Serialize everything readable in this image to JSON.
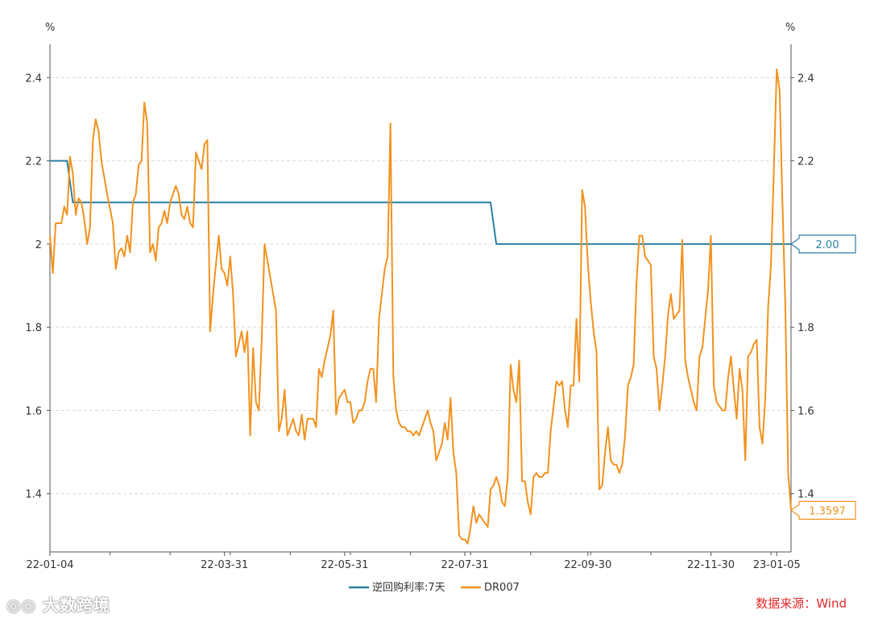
{
  "chart_data": {
    "type": "line",
    "y_unit_left": "%",
    "y_unit_right": "%",
    "ylim": [
      1.26,
      2.48
    ],
    "y_ticks": [
      1.4,
      1.6,
      1.8,
      2,
      2.2,
      2.4
    ],
    "y_tick_labels": [
      "1.4",
      "1.6",
      "1.8",
      "2",
      "2.2",
      "2.4"
    ],
    "x_tick_labels": [
      "22-01-04",
      "22-03-31",
      "22-05-31",
      "22-07-31",
      "22-09-30",
      "22-11-30",
      "23-01-05"
    ],
    "x_tick_positions": [
      0,
      61,
      103,
      145,
      188,
      231,
      254
    ],
    "x_max": 259,
    "grid": "horizontal dashed",
    "legend_position": "bottom-center",
    "series": [
      {
        "name": "逆回购利率:7天",
        "color": "#2a7fa5",
        "end_label": "2.00",
        "points": [
          [
            0,
            2.2
          ],
          [
            6,
            2.2
          ],
          [
            8,
            2.1
          ],
          [
            154,
            2.1
          ],
          [
            156,
            2.0
          ],
          [
            259,
            2.0
          ]
        ]
      },
      {
        "name": "DR007",
        "color": "#f2921f",
        "end_label": "1.3597",
        "points": [
          [
            0,
            2.02
          ],
          [
            1,
            1.93
          ],
          [
            2,
            2.05
          ],
          [
            4,
            2.05
          ],
          [
            5,
            2.09
          ],
          [
            6,
            2.07
          ],
          [
            7,
            2.21
          ],
          [
            8,
            2.17
          ],
          [
            9,
            2.07
          ],
          [
            10,
            2.11
          ],
          [
            11,
            2.1
          ],
          [
            12,
            2.06
          ],
          [
            13,
            2.0
          ],
          [
            14,
            2.04
          ],
          [
            15,
            2.25
          ],
          [
            16,
            2.3
          ],
          [
            17,
            2.27
          ],
          [
            18,
            2.2
          ],
          [
            20,
            2.12
          ],
          [
            22,
            2.05
          ],
          [
            23,
            1.94
          ],
          [
            24,
            1.98
          ],
          [
            25,
            1.99
          ],
          [
            26,
            1.97
          ],
          [
            27,
            2.02
          ],
          [
            28,
            1.98
          ],
          [
            29,
            2.1
          ],
          [
            30,
            2.12
          ],
          [
            31,
            2.19
          ],
          [
            32,
            2.2
          ],
          [
            33,
            2.34
          ],
          [
            34,
            2.29
          ],
          [
            35,
            1.98
          ],
          [
            36,
            2.0
          ],
          [
            37,
            1.96
          ],
          [
            38,
            2.04
          ],
          [
            39,
            2.05
          ],
          [
            40,
            2.08
          ],
          [
            41,
            2.05
          ],
          [
            42,
            2.1
          ],
          [
            43,
            2.12
          ],
          [
            44,
            2.14
          ],
          [
            45,
            2.12
          ],
          [
            46,
            2.07
          ],
          [
            47,
            2.06
          ],
          [
            48,
            2.09
          ],
          [
            49,
            2.05
          ],
          [
            50,
            2.04
          ],
          [
            51,
            2.22
          ],
          [
            52,
            2.2
          ],
          [
            53,
            2.18
          ],
          [
            54,
            2.24
          ],
          [
            55,
            2.25
          ],
          [
            56,
            1.79
          ],
          [
            57,
            1.88
          ],
          [
            58,
            1.95
          ],
          [
            59,
            2.02
          ],
          [
            60,
            1.94
          ],
          [
            61,
            1.93
          ],
          [
            62,
            1.9
          ],
          [
            63,
            1.97
          ],
          [
            64,
            1.88
          ],
          [
            65,
            1.73
          ],
          [
            66,
            1.76
          ],
          [
            67,
            1.79
          ],
          [
            68,
            1.74
          ],
          [
            69,
            1.79
          ],
          [
            70,
            1.54
          ],
          [
            71,
            1.75
          ],
          [
            72,
            1.62
          ],
          [
            73,
            1.6
          ],
          [
            74,
            1.77
          ],
          [
            75,
            2.0
          ],
          [
            76,
            1.96
          ],
          [
            77,
            1.92
          ],
          [
            78,
            1.88
          ],
          [
            79,
            1.84
          ],
          [
            80,
            1.55
          ],
          [
            81,
            1.58
          ],
          [
            82,
            1.65
          ],
          [
            83,
            1.54
          ],
          [
            84,
            1.56
          ],
          [
            85,
            1.58
          ],
          [
            86,
            1.55
          ],
          [
            87,
            1.54
          ],
          [
            88,
            1.59
          ],
          [
            89,
            1.53
          ],
          [
            90,
            1.58
          ],
          [
            91,
            1.58
          ],
          [
            92,
            1.58
          ],
          [
            93,
            1.56
          ],
          [
            94,
            1.7
          ],
          [
            95,
            1.68
          ],
          [
            96,
            1.72
          ],
          [
            97,
            1.75
          ],
          [
            98,
            1.78
          ],
          [
            99,
            1.84
          ],
          [
            100,
            1.59
          ],
          [
            101,
            1.63
          ],
          [
            102,
            1.64
          ],
          [
            103,
            1.65
          ],
          [
            104,
            1.62
          ],
          [
            105,
            1.62
          ],
          [
            106,
            1.57
          ],
          [
            107,
            1.58
          ],
          [
            108,
            1.6
          ],
          [
            109,
            1.6
          ],
          [
            110,
            1.62
          ],
          [
            111,
            1.67
          ],
          [
            112,
            1.7
          ],
          [
            113,
            1.7
          ],
          [
            114,
            1.62
          ],
          [
            115,
            1.82
          ],
          [
            116,
            1.88
          ],
          [
            117,
            1.94
          ],
          [
            118,
            1.97
          ],
          [
            119,
            2.29
          ],
          [
            120,
            1.68
          ],
          [
            121,
            1.6
          ],
          [
            122,
            1.57
          ],
          [
            123,
            1.56
          ],
          [
            124,
            1.56
          ],
          [
            125,
            1.55
          ],
          [
            126,
            1.55
          ],
          [
            127,
            1.54
          ],
          [
            128,
            1.55
          ],
          [
            129,
            1.54
          ],
          [
            130,
            1.56
          ],
          [
            131,
            1.58
          ],
          [
            132,
            1.6
          ],
          [
            133,
            1.57
          ],
          [
            134,
            1.55
          ],
          [
            135,
            1.48
          ],
          [
            136,
            1.5
          ],
          [
            137,
            1.52
          ],
          [
            138,
            1.57
          ],
          [
            139,
            1.53
          ],
          [
            140,
            1.63
          ],
          [
            141,
            1.5
          ],
          [
            142,
            1.45
          ],
          [
            143,
            1.3
          ],
          [
            144,
            1.29
          ],
          [
            145,
            1.29
          ],
          [
            146,
            1.28
          ],
          [
            147,
            1.32
          ],
          [
            148,
            1.37
          ],
          [
            149,
            1.33
          ],
          [
            150,
            1.35
          ],
          [
            151,
            1.34
          ],
          [
            152,
            1.33
          ],
          [
            153,
            1.32
          ],
          [
            154,
            1.41
          ],
          [
            155,
            1.42
          ],
          [
            156,
            1.44
          ],
          [
            157,
            1.42
          ],
          [
            158,
            1.38
          ],
          [
            159,
            1.37
          ],
          [
            160,
            1.44
          ],
          [
            161,
            1.71
          ],
          [
            162,
            1.65
          ],
          [
            163,
            1.62
          ],
          [
            164,
            1.72
          ],
          [
            165,
            1.43
          ],
          [
            166,
            1.43
          ],
          [
            167,
            1.38
          ],
          [
            168,
            1.35
          ],
          [
            169,
            1.44
          ],
          [
            170,
            1.45
          ],
          [
            171,
            1.44
          ],
          [
            172,
            1.44
          ],
          [
            173,
            1.45
          ],
          [
            174,
            1.45
          ],
          [
            175,
            1.55
          ],
          [
            176,
            1.61
          ],
          [
            177,
            1.67
          ],
          [
            178,
            1.66
          ],
          [
            179,
            1.67
          ],
          [
            180,
            1.6
          ],
          [
            181,
            1.56
          ],
          [
            182,
            1.66
          ],
          [
            183,
            1.66
          ],
          [
            184,
            1.82
          ],
          [
            185,
            1.67
          ],
          [
            186,
            2.13
          ],
          [
            187,
            2.09
          ],
          [
            188,
            1.95
          ],
          [
            189,
            1.86
          ],
          [
            190,
            1.79
          ],
          [
            191,
            1.74
          ],
          [
            192,
            1.41
          ],
          [
            193,
            1.42
          ],
          [
            194,
            1.5
          ],
          [
            195,
            1.56
          ],
          [
            196,
            1.48
          ],
          [
            197,
            1.47
          ],
          [
            198,
            1.47
          ],
          [
            199,
            1.45
          ],
          [
            200,
            1.47
          ],
          [
            201,
            1.54
          ],
          [
            202,
            1.66
          ],
          [
            203,
            1.68
          ],
          [
            204,
            1.71
          ],
          [
            205,
            1.91
          ],
          [
            206,
            2.02
          ],
          [
            207,
            2.02
          ],
          [
            208,
            1.97
          ],
          [
            209,
            1.96
          ],
          [
            210,
            1.95
          ],
          [
            211,
            1.73
          ],
          [
            212,
            1.7
          ],
          [
            213,
            1.6
          ],
          [
            214,
            1.66
          ],
          [
            215,
            1.73
          ],
          [
            216,
            1.83
          ],
          [
            217,
            1.88
          ],
          [
            218,
            1.82
          ],
          [
            219,
            1.83
          ],
          [
            220,
            1.84
          ],
          [
            221,
            2.01
          ],
          [
            222,
            1.72
          ],
          [
            223,
            1.68
          ],
          [
            224,
            1.65
          ],
          [
            225,
            1.62
          ],
          [
            226,
            1.6
          ],
          [
            227,
            1.73
          ],
          [
            228,
            1.75
          ],
          [
            229,
            1.82
          ],
          [
            230,
            1.89
          ],
          [
            231,
            2.02
          ],
          [
            232,
            1.66
          ],
          [
            233,
            1.62
          ],
          [
            234,
            1.61
          ],
          [
            235,
            1.6
          ],
          [
            236,
            1.6
          ],
          [
            237,
            1.68
          ],
          [
            238,
            1.73
          ],
          [
            239,
            1.65
          ],
          [
            240,
            1.58
          ],
          [
            241,
            1.7
          ],
          [
            242,
            1.65
          ],
          [
            243,
            1.48
          ],
          [
            244,
            1.73
          ],
          [
            245,
            1.74
          ],
          [
            246,
            1.76
          ],
          [
            247,
            1.77
          ],
          [
            248,
            1.56
          ],
          [
            249,
            1.52
          ],
          [
            250,
            1.63
          ],
          [
            251,
            1.85
          ],
          [
            252,
            1.95
          ],
          [
            253,
            2.18
          ],
          [
            254,
            2.42
          ],
          [
            255,
            2.37
          ],
          [
            256,
            2.1
          ],
          [
            257,
            1.85
          ],
          [
            258,
            1.45
          ],
          [
            259,
            1.36
          ]
        ]
      }
    ]
  },
  "source_text": "数据来源：Wind",
  "watermark_text": "大数跨境"
}
